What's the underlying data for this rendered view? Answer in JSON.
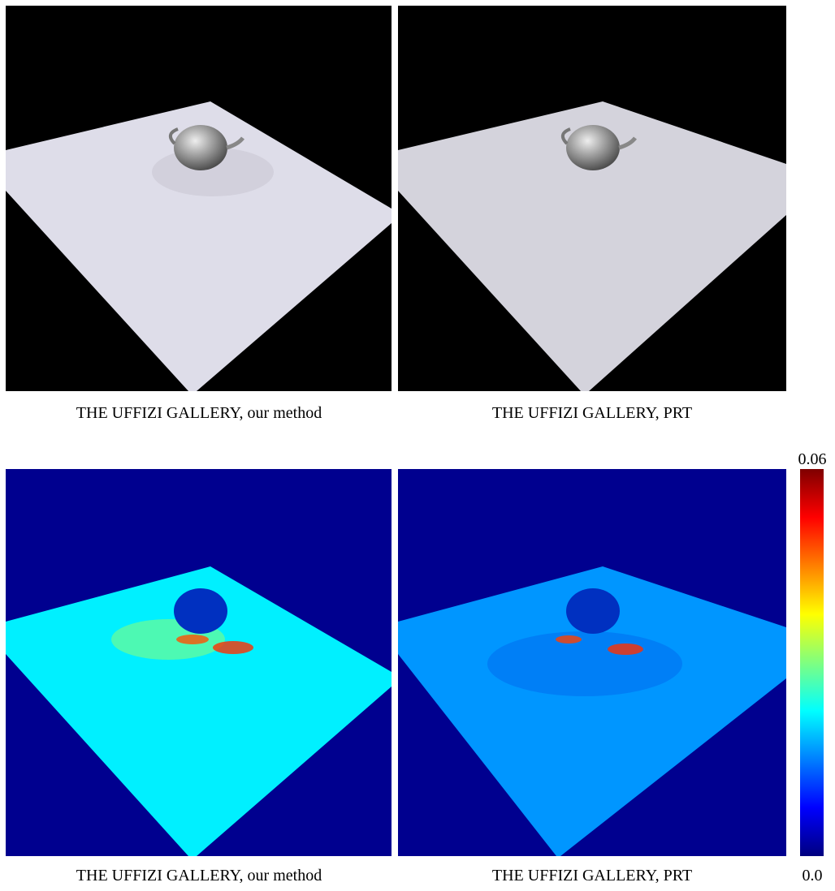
{
  "panels": [
    {
      "caption": "THE UFFIZI GALLERY, our method"
    },
    {
      "caption": "THE UFFIZI GALLERY, PRT"
    },
    {
      "caption": "THE UFFIZI GALLERY, our method"
    },
    {
      "caption": "THE UFFIZI GALLERY, PRT"
    }
  ],
  "colorbar": {
    "max_label": "0.06",
    "min_label": "0.0"
  }
}
